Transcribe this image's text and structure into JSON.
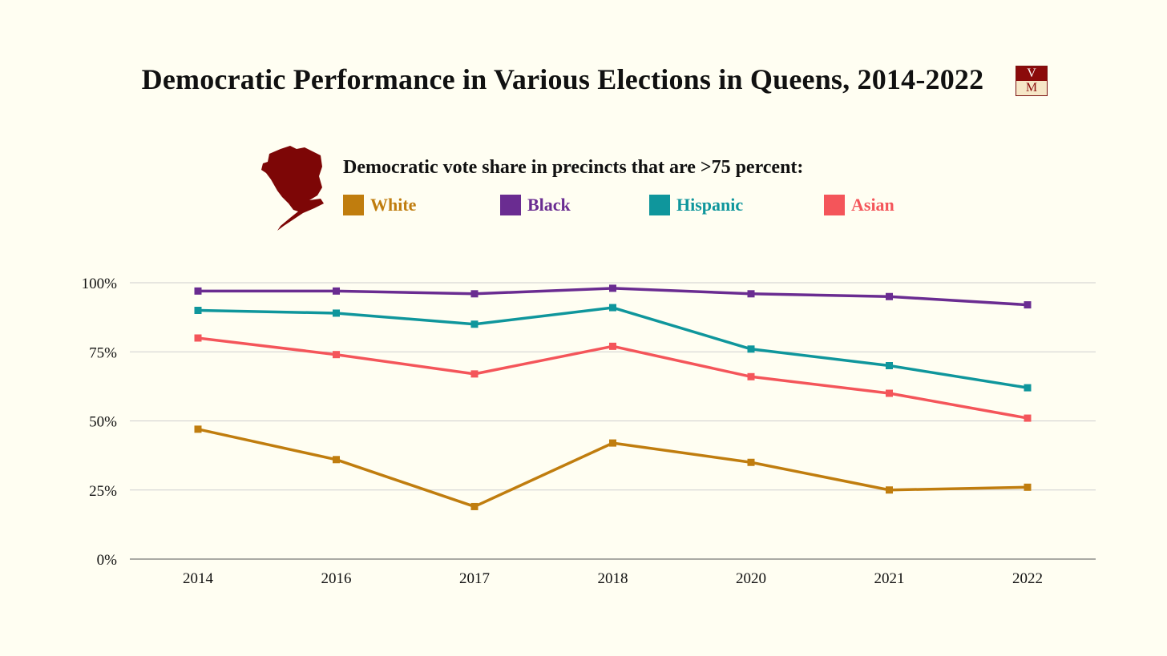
{
  "title": "Democratic Performance in Various Elections in Queens, 2014-2022",
  "logo": {
    "top": "V",
    "bottom": "M"
  },
  "colors": {
    "background": "#fffef2",
    "White": "#c07d0e",
    "Black": "#6a2c91",
    "Hispanic": "#0f969c",
    "Asian": "#f4555a",
    "brand": "#8b0b0b"
  },
  "chart_data": {
    "type": "line",
    "title": "Democratic Performance in Various Elections in Queens, 2014-2022",
    "subtitle": "Democratic vote share in precincts that are >75 percent:",
    "xlabel": "",
    "ylabel": "",
    "categories": [
      "2014",
      "2016",
      "2017",
      "2018",
      "2020",
      "2021",
      "2022"
    ],
    "y_ticks": [
      "0%",
      "25%",
      "50%",
      "75%",
      "100%"
    ],
    "ylim": [
      0,
      100
    ],
    "grid": true,
    "legend_position": "top",
    "marker": "square",
    "series": [
      {
        "name": "White",
        "color": "#c07d0e",
        "values": [
          47,
          36,
          19,
          42,
          35,
          25,
          26
        ]
      },
      {
        "name": "Black",
        "color": "#6a2c91",
        "values": [
          97,
          97,
          96,
          98,
          96,
          95,
          92
        ]
      },
      {
        "name": "Hispanic",
        "color": "#0f969c",
        "values": [
          90,
          89,
          85,
          91,
          76,
          70,
          62
        ]
      },
      {
        "name": "Asian",
        "color": "#f4555a",
        "values": [
          80,
          74,
          67,
          77,
          66,
          60,
          51
        ]
      }
    ]
  }
}
